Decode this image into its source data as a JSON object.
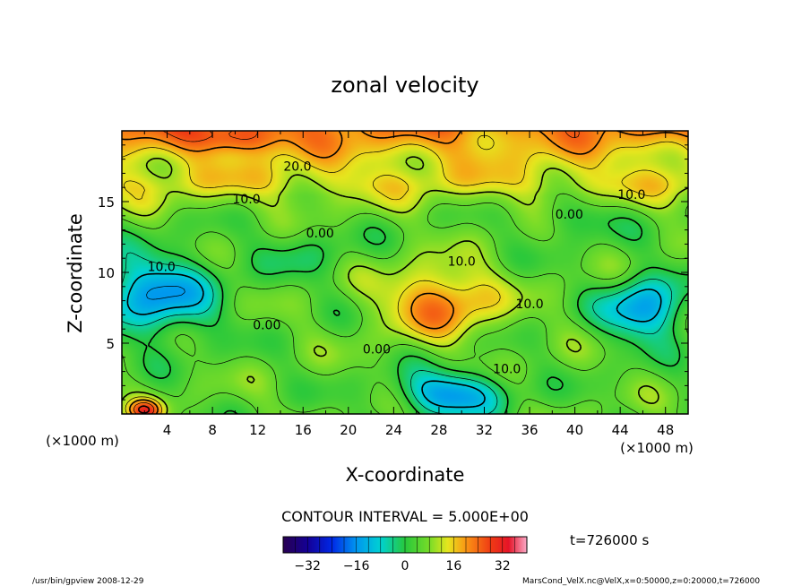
{
  "chart_data": {
    "type": "heatmap",
    "title": "zonal velocity",
    "xlabel": "X-coordinate",
    "ylabel": "Z-coordinate",
    "x_unit": "(×1000 m)",
    "z_unit": "(×1000 m)",
    "xlim": [
      0,
      50
    ],
    "ylim": [
      0,
      20
    ],
    "x_ticks": [
      "4",
      "8",
      "12",
      "16",
      "20",
      "24",
      "28",
      "32",
      "36",
      "40",
      "44",
      "48"
    ],
    "y_ticks": [
      "5",
      "10",
      "15"
    ],
    "contour_interval_text": "CONTOUR INTERVAL = 5.000E+00",
    "contour_labels": [
      {
        "text": "20.0",
        "x": 15.5,
        "z": 17.5
      },
      {
        "text": "10.0",
        "x": 11.0,
        "z": 15.2
      },
      {
        "text": "10.0",
        "x": 45.0,
        "z": 15.5
      },
      {
        "text": "0.00",
        "x": 39.5,
        "z": 14.1
      },
      {
        "text": "0.00",
        "x": 17.5,
        "z": 12.8
      },
      {
        "text": "10.0",
        "x": 3.5,
        "z": 10.4
      },
      {
        "text": "10.0",
        "x": 30.0,
        "z": 10.8
      },
      {
        "text": "10.0",
        "x": 36.0,
        "z": 7.8
      },
      {
        "text": "0.00",
        "x": 12.8,
        "z": 6.3
      },
      {
        "text": "0.00",
        "x": 22.5,
        "z": 4.6
      },
      {
        "text": "10.0",
        "x": 34.0,
        "z": 3.2
      }
    ],
    "features": [
      {
        "x": 28,
        "z": 8,
        "amp": 18,
        "rx": 5.0,
        "rz": 2.5
      },
      {
        "x": 3,
        "z": 8.5,
        "amp": -20,
        "rx": 5.0,
        "rz": 2.8
      },
      {
        "x": 46,
        "z": 7.5,
        "amp": -20,
        "rx": 3.5,
        "rz": 2.2
      },
      {
        "x": 29,
        "z": 1.5,
        "amp": -20,
        "rx": 4.5,
        "rz": 1.6
      },
      {
        "x": 10,
        "z": 19.5,
        "amp": 10,
        "rx": 4,
        "rz": 1.0
      },
      {
        "x": 2,
        "z": 0.3,
        "amp": 22,
        "rx": 1.5,
        "rz": 0.8
      },
      {
        "x": 16,
        "z": 11.5,
        "amp": -5,
        "rx": 4,
        "rz": 2
      },
      {
        "x": 40,
        "z": 14,
        "amp": -6,
        "rx": 4,
        "rz": 1.5
      }
    ],
    "colorbar": {
      "min": -40,
      "max": 40,
      "ticks": [
        "-32",
        "-16",
        "0",
        "16",
        "32"
      ],
      "tick_values": [
        -32,
        -16,
        0,
        16,
        32
      ]
    },
    "time_label": "t=726000 s",
    "footer_left": "/usr/bin/gpview   2008-12-29",
    "footer_right": "MarsCond_VelX.nc@VelX,x=0:50000,z=0:20000,t=726000"
  }
}
